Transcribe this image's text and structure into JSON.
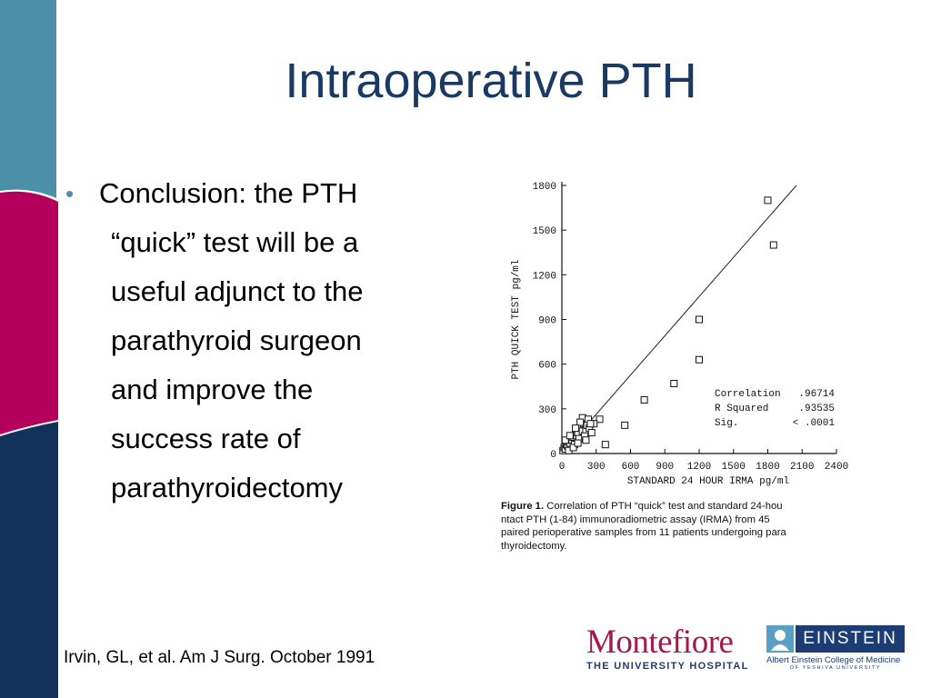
{
  "slide": {
    "title": "Intraoperative PTH",
    "bullet": {
      "lines": [
        "Conclusion:  the PTH",
        "“quick” test will be a",
        "useful adjunct to the",
        "parathyroid surgeon",
        "and improve the",
        "success rate of",
        "parathyroidectomy"
      ]
    },
    "citation": "Irvin, GL, et al. Am J Surg. October 1991",
    "figure": {
      "caption_label": "Figure 1.",
      "caption_lines": [
        "Correlation of PTH “quick” test and standard 24-hou",
        "ntact PTH (1-84) immunoradiometric assay (IRMA) from 45",
        "paired perioperative samples from 11 patients undergoing para",
        "thyroidectomy."
      ]
    },
    "logos": {
      "montefiore": {
        "name": "Montefiore",
        "subtitle": "THE UNIVERSITY HOSPITAL"
      },
      "einstein": {
        "name": "EINSTEIN",
        "subtitle": "Albert Einstein College of Medicine",
        "subtitle2": "OF YESHIVA UNIVERSITY"
      }
    },
    "colors": {
      "title": "#1a3a63",
      "sidebar_teal": "#4c8fa8",
      "sidebar_magenta": "#b5005b",
      "sidebar_navy": "#13325b",
      "montefiore": "#a6194b"
    }
  },
  "chart_data": {
    "type": "scatter",
    "xlabel": "STANDARD 24 HOUR IRMA  pg/ml",
    "ylabel": "PTH  QUICK  TEST  pg/ml",
    "xlim": [
      0,
      2400
    ],
    "ylim": [
      0,
      1800
    ],
    "x_ticks": [
      "0",
      "300",
      "600",
      "900",
      "1200",
      "1500",
      "1800",
      "2100",
      "2400"
    ],
    "y_ticks": [
      "0",
      "300",
      "600",
      "900",
      "1200",
      "1500",
      "1800"
    ],
    "annotations": [
      {
        "label": "Correlation",
        "value": ".96714"
      },
      {
        "label": "R Squared",
        "value": ".93535"
      },
      {
        "label": "Sig.",
        "value": "<  .0001"
      }
    ],
    "points": [
      [
        10,
        20
      ],
      [
        20,
        40
      ],
      [
        30,
        30
      ],
      [
        40,
        60
      ],
      [
        50,
        50
      ],
      [
        60,
        80
      ],
      [
        70,
        70
      ],
      [
        80,
        100
      ],
      [
        90,
        90
      ],
      [
        100,
        110
      ],
      [
        110,
        60
      ],
      [
        120,
        130
      ],
      [
        130,
        120
      ],
      [
        140,
        140
      ],
      [
        150,
        100
      ],
      [
        160,
        170
      ],
      [
        170,
        180
      ],
      [
        180,
        150
      ],
      [
        190,
        200
      ],
      [
        200,
        120
      ],
      [
        210,
        160
      ],
      [
        220,
        190
      ],
      [
        240,
        170
      ],
      [
        260,
        140
      ],
      [
        180,
        240
      ],
      [
        330,
        230
      ],
      [
        280,
        200
      ],
      [
        230,
        230
      ],
      [
        380,
        60
      ],
      [
        550,
        190
      ],
      [
        720,
        360
      ],
      [
        980,
        470
      ],
      [
        1200,
        630
      ],
      [
        1200,
        900
      ],
      [
        1800,
        1700
      ],
      [
        1850,
        1400
      ],
      [
        60,
        20
      ],
      [
        100,
        40
      ],
      [
        140,
        70
      ],
      [
        30,
        90
      ],
      [
        70,
        120
      ],
      [
        210,
        90
      ],
      [
        250,
        200
      ],
      [
        160,
        210
      ],
      [
        120,
        170
      ]
    ],
    "fit_line": {
      "from": [
        0,
        0
      ],
      "to": [
        2050,
        1800
      ]
    }
  }
}
